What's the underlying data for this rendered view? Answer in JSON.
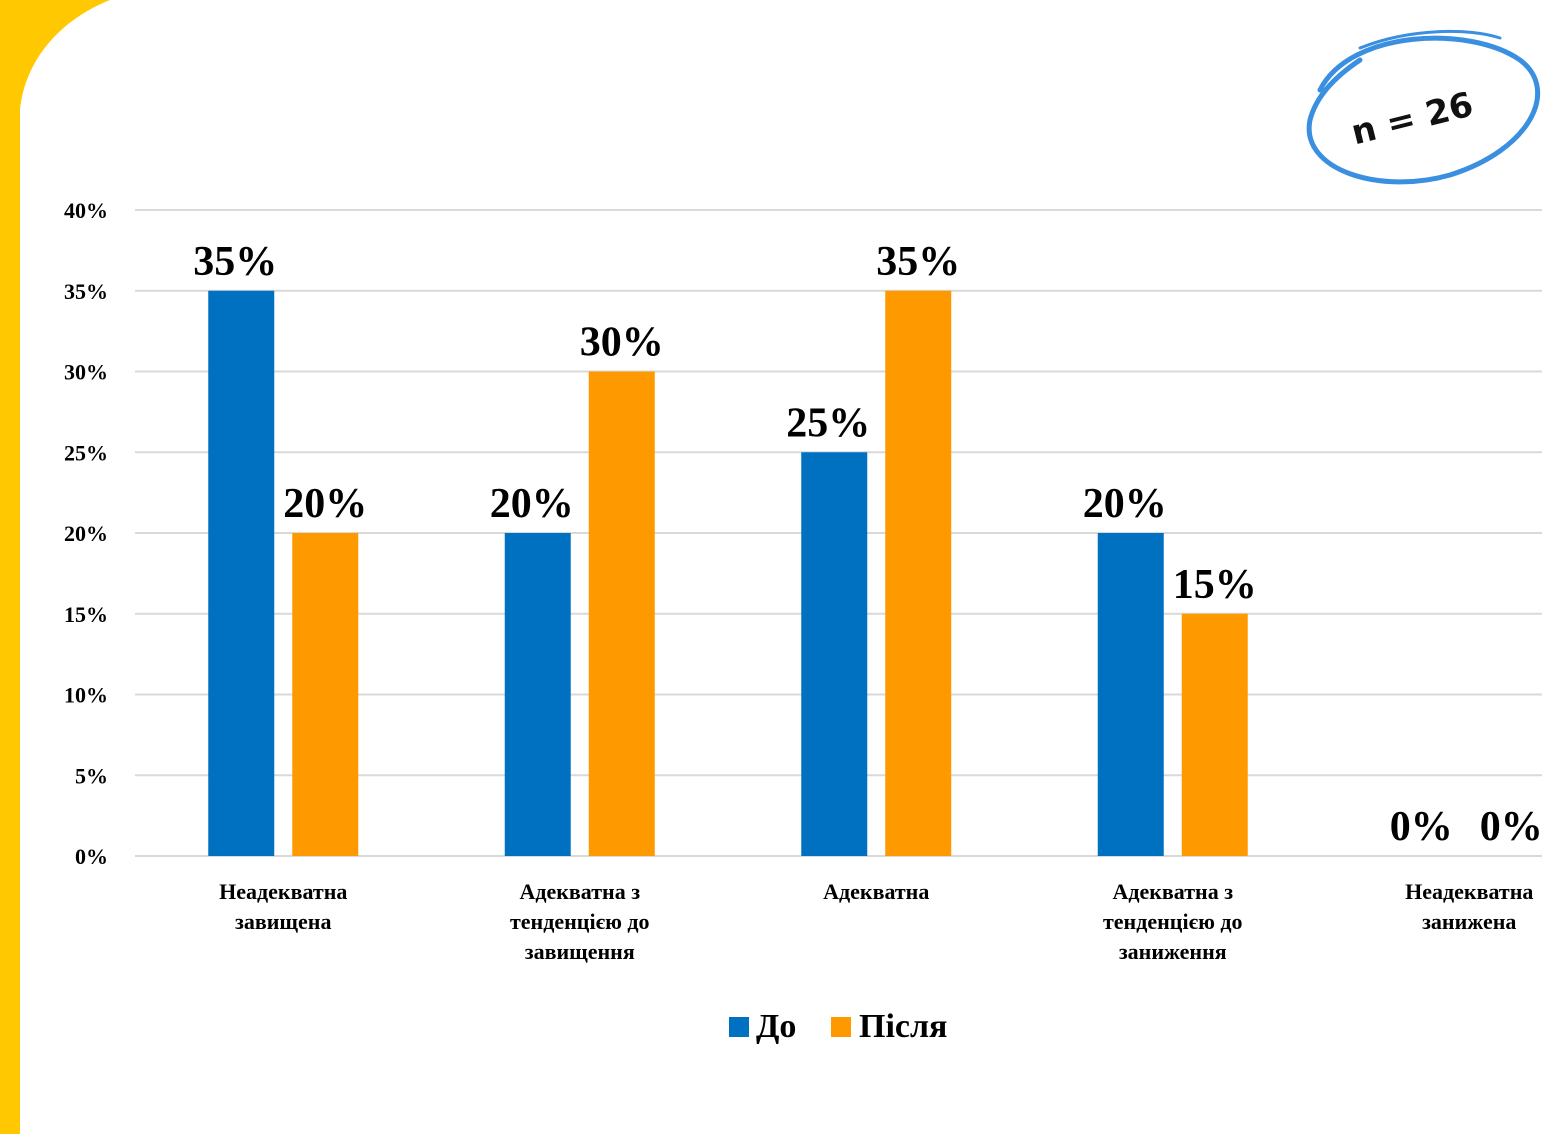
{
  "badge": {
    "text": "n = 26"
  },
  "colors": {
    "frame": "#FFC800",
    "before": "#0070C0",
    "after": "#FF9900",
    "grid": "#D9D9D9",
    "badge_ring": "#3A8FE0"
  },
  "chart_data": {
    "type": "bar",
    "categories": [
      [
        "Неадекватна",
        "завищена"
      ],
      [
        "Адекватна з",
        "тенденцією до",
        "завищення"
      ],
      [
        "Адекватна"
      ],
      [
        "Адекватна з",
        "тенденцією до",
        "заниження"
      ],
      [
        "Неадекватна",
        "занижена"
      ]
    ],
    "series": [
      {
        "name": "До",
        "values": [
          35,
          20,
          25,
          20,
          0
        ],
        "labels": [
          "35%",
          "20%",
          "25%",
          "20%",
          "0%"
        ]
      },
      {
        "name": "Після",
        "values": [
          20,
          30,
          35,
          15,
          0
        ],
        "labels": [
          "20%",
          "30%",
          "35%",
          "15%",
          "0%"
        ]
      }
    ],
    "yticks": [
      "0%",
      "5%",
      "10%",
      "15%",
      "20%",
      "25%",
      "30%",
      "35%",
      "40%"
    ],
    "ylim": [
      0,
      40
    ],
    "grid": true,
    "legend": "bottom"
  }
}
